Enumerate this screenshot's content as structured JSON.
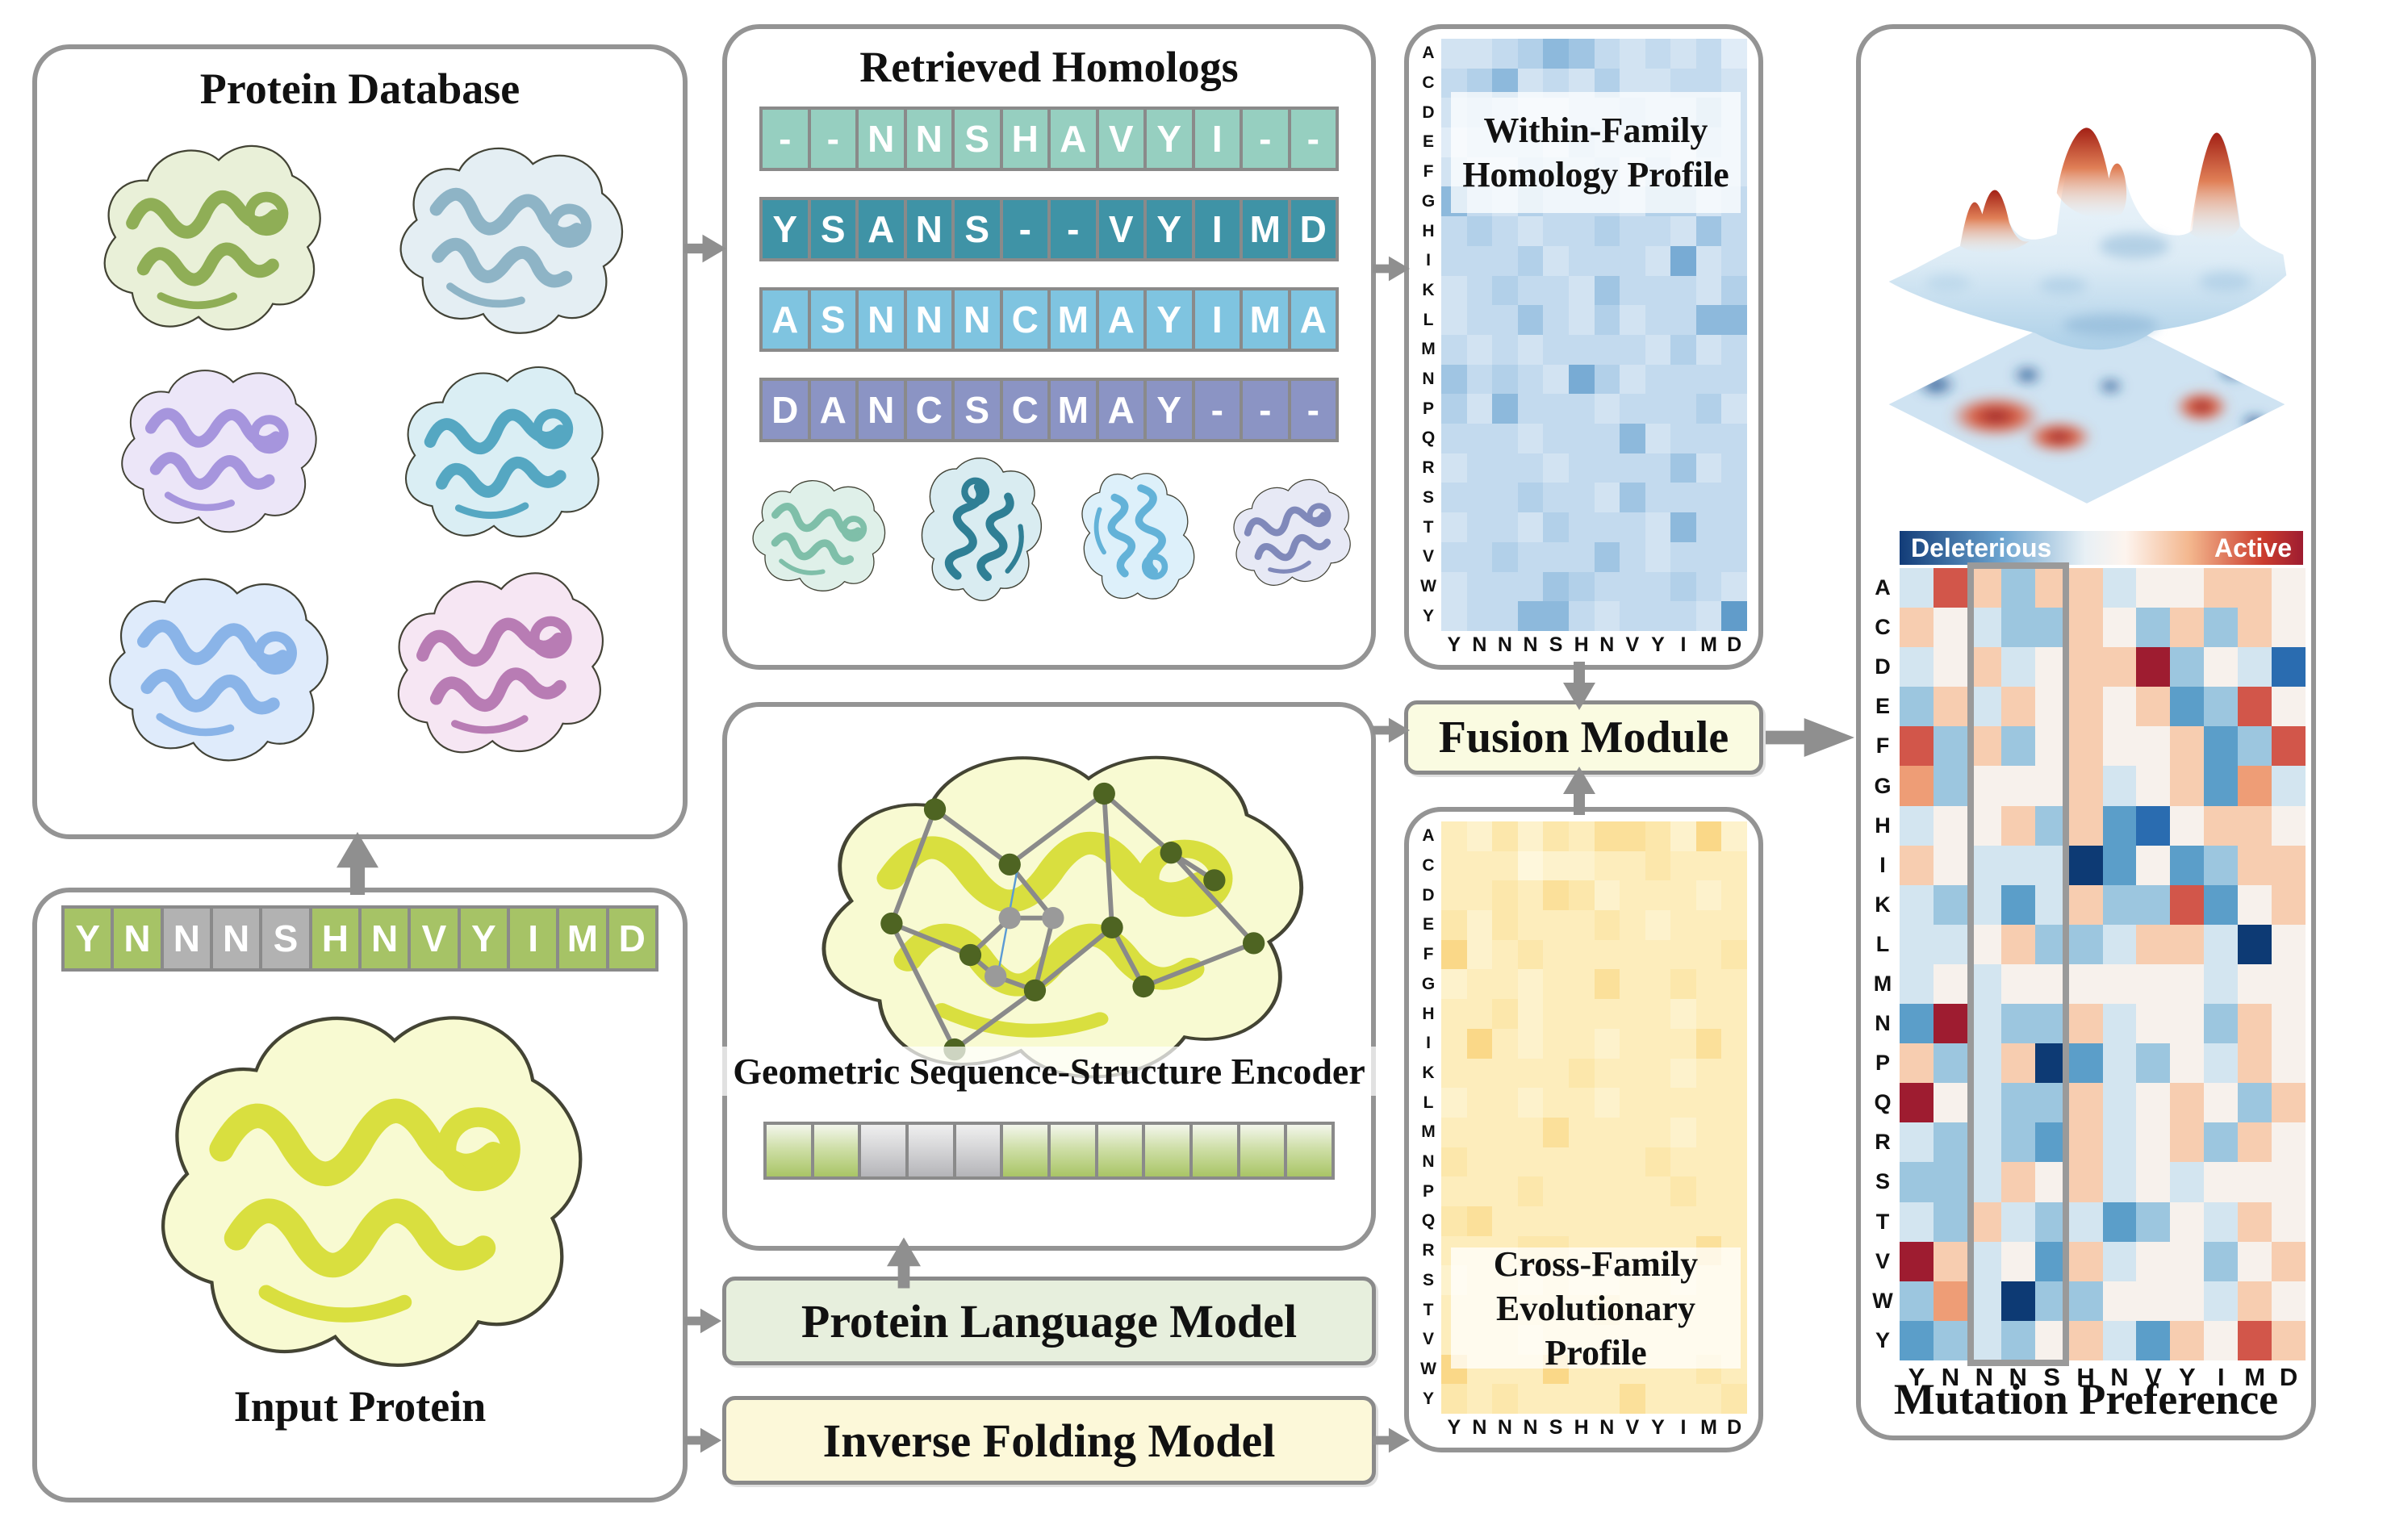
{
  "panels": {
    "protein_database": {
      "title": "Protein Database",
      "proteins": [
        {
          "name": "green-protein",
          "surface": "#e9f0d8",
          "ribbon": "#8fae56"
        },
        {
          "name": "steel-blue-protein",
          "surface": "#e4eef3",
          "ribbon": "#8eb4c6"
        },
        {
          "name": "lavender-protein",
          "surface": "#ece6f8",
          "ribbon": "#a695dd"
        },
        {
          "name": "teal-protein",
          "surface": "#daeef4",
          "ribbon": "#55a7c2"
        },
        {
          "name": "blue-protein",
          "surface": "#dfebfb",
          "ribbon": "#8ab4e8"
        },
        {
          "name": "magenta-protein",
          "surface": "#f6e6f3",
          "ribbon": "#b87cb4"
        }
      ]
    },
    "input_protein": {
      "label": "Input Protein",
      "letters": [
        "Y",
        "N",
        "N",
        "N",
        "S",
        "H",
        "N",
        "V",
        "Y",
        "I",
        "M",
        "D"
      ],
      "cell_colors": [
        "#a6c366",
        "#a6c366",
        "#b2b2b2",
        "#b2b2b2",
        "#b2b2b2",
        "#a6c366",
        "#a6c366",
        "#a6c366",
        "#a6c366",
        "#a6c366",
        "#a6c366",
        "#a6c366"
      ],
      "protein": {
        "name": "yellow-protein",
        "surface": "#f8fad2",
        "ribbon": "#d9df3f"
      }
    },
    "retrieved_homologs": {
      "title": "Retrieved Homologs",
      "rows": [
        {
          "color": "#96cfc0",
          "letters": [
            "-",
            "-",
            "N",
            "N",
            "S",
            "H",
            "A",
            "V",
            "Y",
            "I",
            "-",
            "-"
          ]
        },
        {
          "color": "#3f93a6",
          "letters": [
            "Y",
            "S",
            "A",
            "N",
            "S",
            "-",
            "-",
            "V",
            "Y",
            "I",
            "M",
            "D"
          ]
        },
        {
          "color": "#7fc4e0",
          "letters": [
            "A",
            "S",
            "N",
            "N",
            "N",
            "C",
            "M",
            "A",
            "Y",
            "I",
            "M",
            "A"
          ]
        },
        {
          "color": "#8b94c4",
          "letters": [
            "D",
            "A",
            "N",
            "C",
            "S",
            "C",
            "M",
            "A",
            "Y",
            "-",
            "-",
            "-"
          ]
        }
      ],
      "proteins": [
        {
          "name": "seafoam-protein",
          "surface": "#dff0e9",
          "ribbon": "#7fbfa9"
        },
        {
          "name": "dark-teal-protein",
          "surface": "#d9ecf1",
          "ribbon": "#2f7f95"
        },
        {
          "name": "light-blue-protein",
          "surface": "#ddf0fa",
          "ribbon": "#63b2d8"
        },
        {
          "name": "slate-protein",
          "surface": "#e7e9f5",
          "ribbon": "#8089ba"
        }
      ]
    },
    "encoder": {
      "title": "Geometric Sequence-Structure Encoder",
      "protein": {
        "name": "yellow-protein",
        "surface": "#f8fad2",
        "ribbon": "#d9df3f"
      },
      "embedding": {
        "cells": [
          "green",
          "green",
          "gray",
          "gray",
          "gray",
          "green",
          "green",
          "green",
          "green",
          "green",
          "green",
          "green"
        ]
      }
    },
    "plm": {
      "label": "Protein Language Model",
      "bg": "#e7efdd"
    },
    "ifm": {
      "label": "Inverse Folding Model",
      "bg": "#fcf8d9"
    },
    "fusion": {
      "label": "Fusion Module",
      "bg": "#fafbe1"
    },
    "within_family": {
      "title_line1": "Within-Family",
      "title_line2": "Homology Profile",
      "row_labels": [
        "A",
        "C",
        "D",
        "E",
        "F",
        "G",
        "H",
        "I",
        "K",
        "L",
        "M",
        "N",
        "P",
        "Q",
        "R",
        "S",
        "T",
        "V",
        "W",
        "Y"
      ],
      "col_labels": [
        "Y",
        "N",
        "N",
        "N",
        "S",
        "H",
        "N",
        "V",
        "Y",
        "I",
        "M",
        "D"
      ],
      "palette": [
        "#edf4fb",
        "#e0ecf7",
        "#d2e3f2",
        "#c3daee",
        "#b2d0e9",
        "#a0c5e3",
        "#8db9dc",
        "#78abd4",
        "#619cca",
        "#4a8cc0"
      ],
      "matrix": [
        "223465323231",
        "346232422332",
        "232112232242",
        "122213222132",
        "211322313122",
        "632433324423",
        "343233433253",
        "333423332723",
        "234332533324",
        "233532423366",
        "323233332423",
        "534327423333",
        "426333233342",
        "333233362333",
        "233323333523",
        "333433253333",
        "233243332633",
        "334333532333",
        "233354333432",
        "233663233328"
      ]
    },
    "cross_family": {
      "title_line1": "Cross-Family",
      "title_line2": "Evolutionary Profile",
      "row_labels": [
        "A",
        "C",
        "D",
        "E",
        "F",
        "G",
        "H",
        "I",
        "K",
        "L",
        "M",
        "N",
        "P",
        "Q",
        "R",
        "S",
        "T",
        "V",
        "W",
        "Y"
      ],
      "col_labels": [
        "Y",
        "N",
        "N",
        "N",
        "S",
        "H",
        "N",
        "V",
        "Y",
        "I",
        "M",
        "D"
      ],
      "palette": [
        "#fffceb",
        "#fef7dc",
        "#fdf2cc",
        "#fdedbc",
        "#fce7ab",
        "#fbe09a",
        "#fad888",
        "#f9cf75",
        "#f7c561",
        "#f5ba4d"
      ],
      "matrix": [
        "324243554262",
        "333122334333",
        "334354233323",
        "424333432333",
        "623433333334",
        "233233533433",
        "334233333233",
        "363233233353",
        "333334333233",
        "233233233333",
        "333353333233",
        "433333334333",
        "333433333433",
        "453333333333",
        "333443333353",
        "233232233233",
        "333333433333",
        "333233333333",
        "633363333343",
        "434333353334"
      ]
    },
    "mutation": {
      "title": "Mutation Preference",
      "colorbar": {
        "left_label": "Deleterious",
        "right_label": "Active",
        "left_color": "#123c78",
        "right_color": "#9e1c30"
      },
      "row_labels": [
        "A",
        "C",
        "D",
        "E",
        "F",
        "G",
        "H",
        "I",
        "K",
        "L",
        "M",
        "N",
        "P",
        "Q",
        "R",
        "S",
        "T",
        "V",
        "W",
        "Y"
      ],
      "col_labels": [
        "Y",
        "N",
        "N",
        "N",
        "S",
        "H",
        "N",
        "V",
        "Y",
        "I",
        "M",
        "D"
      ],
      "palette": [
        "#0d3a74",
        "#2a6cb0",
        "#5b9ec9",
        "#9cc6df",
        "#d3e5f0",
        "#f7f1ec",
        "#f7cdb0",
        "#ee9d76",
        "#d2564a",
        "#9e1c30"
      ],
      "matrix": [
        "486366455665",
        "654336536365",
        "456456693541",
        "364656562385",
        "836356556238",
        "735556456274",
        "455636215665",
        "654440252366",
        "434246338256",
        "445633466405",
        "454555555455",
        "294336455365",
        "634602435465",
        "954336456536",
        "434326456365",
        "334656454555",
        "436434235465",
        "964526455356",
        "374033555465",
        "234356426586"
      ],
      "highlight": {
        "start": 2,
        "span": 3
      }
    }
  }
}
